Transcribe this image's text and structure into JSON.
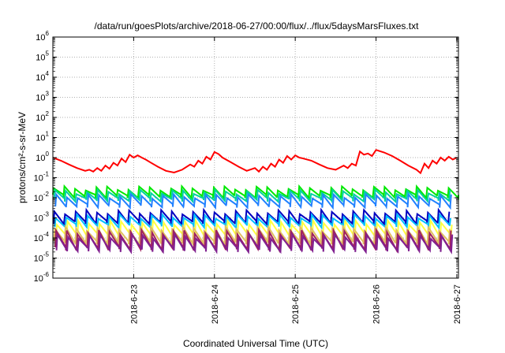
{
  "chart_data": {
    "type": "line",
    "title": "/data/run/goesPlots/archive/2018-06-27/00:00/flux/../flux/5daysMarsFluxes.txt",
    "xlabel": "Coordinated Universal Time (UTC)",
    "ylabel": "protons/cm²-s-sr-MeV",
    "y_scale": "log",
    "ylim_exponents": [
      -6,
      6
    ],
    "y_tick_base": "10",
    "y_tick_exponents": [
      "-6",
      "-5",
      "-4",
      "-3",
      "-2",
      "-1",
      "0",
      "1",
      "2",
      "3",
      "4",
      "5",
      "6"
    ],
    "x_ticks": [
      "2018-6-23",
      "2018-6-24",
      "2018-6-25",
      "2018-6-26",
      "2018-6-27"
    ],
    "x_tick_days": [
      23,
      24,
      25,
      26,
      27
    ],
    "xlim_days": [
      22.0,
      27.02
    ],
    "grid": true,
    "series_colors": [
      "#ff0000",
      "#00e800",
      "#00d0a0",
      "#2080ff",
      "#0000c0",
      "#00c0ff",
      "#ffff40",
      "#e0c060",
      "#a02060",
      "#802090"
    ],
    "series": [
      {
        "color": "#ff0000",
        "x": [
          22.0,
          22.1,
          22.2,
          22.3,
          22.4,
          22.45,
          22.5,
          22.55,
          22.6,
          22.65,
          22.7,
          22.75,
          22.8,
          22.85,
          22.9,
          22.95,
          23.0,
          23.05,
          23.1,
          23.15,
          23.2,
          23.3,
          23.4,
          23.5,
          23.6,
          23.7,
          23.75,
          23.8,
          23.85,
          23.9,
          23.95,
          24.0,
          24.05,
          24.1,
          24.2,
          24.3,
          24.4,
          24.5,
          24.55,
          24.6,
          24.65,
          24.7,
          24.75,
          24.8,
          24.85,
          24.9,
          24.95,
          25.0,
          25.05,
          25.1,
          25.2,
          25.3,
          25.4,
          25.5,
          25.6,
          25.65,
          25.7,
          25.75,
          25.8,
          25.85,
          25.9,
          25.95,
          26.0,
          26.1,
          26.2,
          26.3,
          26.4,
          26.5,
          26.55,
          26.6,
          26.65,
          26.7,
          26.75,
          26.8,
          26.85,
          26.9,
          26.95,
          27.0
        ],
        "y": [
          1.0,
          0.7,
          0.45,
          0.3,
          0.22,
          0.25,
          0.2,
          0.3,
          0.22,
          0.4,
          0.28,
          0.55,
          0.4,
          0.9,
          0.6,
          1.4,
          1.0,
          1.3,
          1.0,
          0.8,
          0.6,
          0.35,
          0.22,
          0.18,
          0.25,
          0.45,
          0.35,
          0.7,
          0.5,
          1.1,
          0.8,
          1.9,
          1.5,
          1.0,
          0.6,
          0.35,
          0.22,
          0.3,
          0.2,
          0.35,
          0.25,
          0.5,
          0.35,
          0.8,
          0.55,
          1.2,
          0.8,
          1.3,
          1.0,
          0.9,
          0.7,
          0.45,
          0.3,
          0.25,
          0.4,
          0.3,
          0.5,
          0.4,
          2.0,
          1.4,
          1.6,
          1.2,
          2.4,
          1.8,
          1.2,
          0.7,
          0.4,
          0.25,
          0.17,
          0.5,
          0.3,
          0.7,
          0.5,
          1.0,
          0.7,
          1.1,
          0.8,
          1.0
        ]
      }
    ],
    "band_series": [
      {
        "color": "#00e800",
        "peak": 0.03,
        "trough": 0.012,
        "phase": 0.0
      },
      {
        "color": "#00d0a0",
        "peak": 0.02,
        "trough": 0.008,
        "phase": 0.3
      },
      {
        "color": "#2080ff",
        "peak": 0.012,
        "trough": 0.004,
        "phase": 0.6
      },
      {
        "color": "#0000c0",
        "peak": 0.002,
        "trough": 0.0006,
        "phase": 0.15
      },
      {
        "color": "#00c0ff",
        "peak": 0.0012,
        "trough": 0.0004,
        "phase": 0.45
      },
      {
        "color": "#ffff40",
        "peak": 0.0006,
        "trough": 0.00012,
        "phase": 0.75
      },
      {
        "color": "#e0c060",
        "peak": 0.0003,
        "trough": 6e-05,
        "phase": 0.25
      },
      {
        "color": "#a02060",
        "peak": 0.0002,
        "trough": 3e-05,
        "phase": 0.55
      },
      {
        "color": "#802090",
        "peak": 0.00012,
        "trough": 2.5e-05,
        "phase": 0.85
      }
    ]
  }
}
